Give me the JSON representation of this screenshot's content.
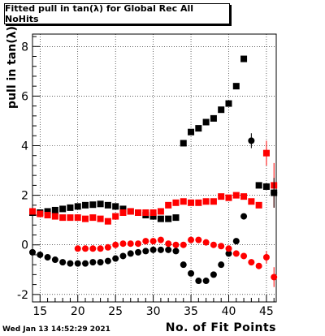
{
  "chart_data": {
    "type": "scatter",
    "title": "Fitted pull in tan(λ) for Global Rec All NoHits",
    "xlabel": "No. of Fit Points",
    "ylabel": "pull in tan(λ)",
    "xlim": [
      14,
      46.3
    ],
    "ylim": [
      -2.3,
      8.5
    ],
    "x_ticks": [
      15,
      20,
      25,
      30,
      35,
      40,
      45
    ],
    "y_ticks": [
      -2,
      0,
      2,
      4,
      6,
      8
    ],
    "grid": true,
    "series": [
      {
        "marker": "square",
        "color": "#000000",
        "points": [
          [
            14,
            1.3
          ],
          [
            15,
            1.3
          ],
          [
            16,
            1.35
          ],
          [
            17,
            1.4
          ],
          [
            18,
            1.45
          ],
          [
            19,
            1.5
          ],
          [
            20,
            1.55
          ],
          [
            21,
            1.6
          ],
          [
            22,
            1.62
          ],
          [
            23,
            1.65
          ],
          [
            24,
            1.6
          ],
          [
            25,
            1.55
          ],
          [
            26,
            1.45
          ],
          [
            27,
            1.35
          ],
          [
            28,
            1.3
          ],
          [
            29,
            1.2
          ],
          [
            30,
            1.15
          ],
          [
            31,
            1.05
          ],
          [
            32,
            1.05
          ],
          [
            33,
            1.1
          ],
          [
            34,
            4.1
          ],
          [
            35,
            4.55
          ],
          [
            36,
            4.7
          ],
          [
            37,
            4.95
          ],
          [
            38,
            5.1
          ],
          [
            39,
            5.45
          ],
          [
            40,
            5.7
          ],
          [
            41,
            6.4
          ],
          [
            42,
            7.5
          ],
          [
            44,
            2.4
          ],
          [
            45,
            2.35
          ],
          [
            46,
            2.1
          ]
        ]
      },
      {
        "marker": "square",
        "color": "#ff0000",
        "points": [
          [
            14,
            1.35
          ],
          [
            15,
            1.25
          ],
          [
            16,
            1.2
          ],
          [
            17,
            1.15
          ],
          [
            18,
            1.1
          ],
          [
            19,
            1.1
          ],
          [
            20,
            1.1
          ],
          [
            21,
            1.05
          ],
          [
            22,
            1.1
          ],
          [
            23,
            1.05
          ],
          [
            24,
            0.95
          ],
          [
            25,
            1.15
          ],
          [
            26,
            1.3
          ],
          [
            27,
            1.35
          ],
          [
            28,
            1.3
          ],
          [
            29,
            1.3
          ],
          [
            30,
            1.3
          ],
          [
            31,
            1.35
          ],
          [
            32,
            1.6
          ],
          [
            33,
            1.7
          ],
          [
            34,
            1.75
          ],
          [
            35,
            1.7
          ],
          [
            36,
            1.7
          ],
          [
            37,
            1.75
          ],
          [
            38,
            1.75
          ],
          [
            39,
            1.95
          ],
          [
            40,
            1.9
          ],
          [
            41,
            2.0
          ],
          [
            42,
            1.95
          ],
          [
            43,
            1.75
          ],
          [
            44,
            1.6
          ],
          [
            45,
            3.7
          ],
          [
            46,
            2.4
          ]
        ],
        "errors": [
          [
            45,
            0.5
          ],
          [
            46,
            0.9
          ]
        ]
      },
      {
        "marker": "circle",
        "color": "#000000",
        "points": [
          [
            14,
            -0.3
          ],
          [
            15,
            -0.4
          ],
          [
            16,
            -0.5
          ],
          [
            17,
            -0.6
          ],
          [
            18,
            -0.7
          ],
          [
            19,
            -0.75
          ],
          [
            20,
            -0.75
          ],
          [
            21,
            -0.75
          ],
          [
            22,
            -0.7
          ],
          [
            23,
            -0.7
          ],
          [
            24,
            -0.65
          ],
          [
            25,
            -0.55
          ],
          [
            26,
            -0.45
          ],
          [
            27,
            -0.35
          ],
          [
            28,
            -0.3
          ],
          [
            29,
            -0.25
          ],
          [
            30,
            -0.2
          ],
          [
            31,
            -0.2
          ],
          [
            32,
            -0.2
          ],
          [
            33,
            -0.25
          ],
          [
            34,
            -0.8
          ],
          [
            35,
            -1.15
          ],
          [
            36,
            -1.45
          ],
          [
            37,
            -1.45
          ],
          [
            38,
            -1.2
          ],
          [
            39,
            -0.8
          ],
          [
            40,
            -0.35
          ],
          [
            41,
            0.15
          ],
          [
            42,
            1.15
          ],
          [
            43,
            4.2
          ],
          [
            46,
            2.1
          ]
        ],
        "errors": [
          [
            43,
            0.3
          ],
          [
            46,
            0.6
          ]
        ]
      },
      {
        "marker": "circle",
        "color": "#ff0000",
        "points": [
          [
            20,
            -0.15
          ],
          [
            21,
            -0.15
          ],
          [
            22,
            -0.15
          ],
          [
            23,
            -0.15
          ],
          [
            24,
            -0.1
          ],
          [
            25,
            0.0
          ],
          [
            26,
            0.05
          ],
          [
            27,
            0.05
          ],
          [
            28,
            0.05
          ],
          [
            29,
            0.15
          ],
          [
            30,
            0.15
          ],
          [
            31,
            0.2
          ],
          [
            32,
            0.05
          ],
          [
            33,
            0.0
          ],
          [
            34,
            0.0
          ],
          [
            35,
            0.2
          ],
          [
            36,
            0.2
          ],
          [
            37,
            0.1
          ],
          [
            38,
            0.0
          ],
          [
            39,
            -0.05
          ],
          [
            40,
            -0.15
          ],
          [
            41,
            -0.35
          ],
          [
            42,
            -0.45
          ],
          [
            43,
            -0.7
          ],
          [
            44,
            -0.85
          ],
          [
            45,
            -0.5
          ],
          [
            46,
            -1.3
          ]
        ],
        "errors": [
          [
            45,
            0.25
          ],
          [
            46,
            0.4
          ]
        ]
      }
    ]
  },
  "footer": {
    "timestamp": "Wed Jan 13 14:52:29 2021"
  }
}
